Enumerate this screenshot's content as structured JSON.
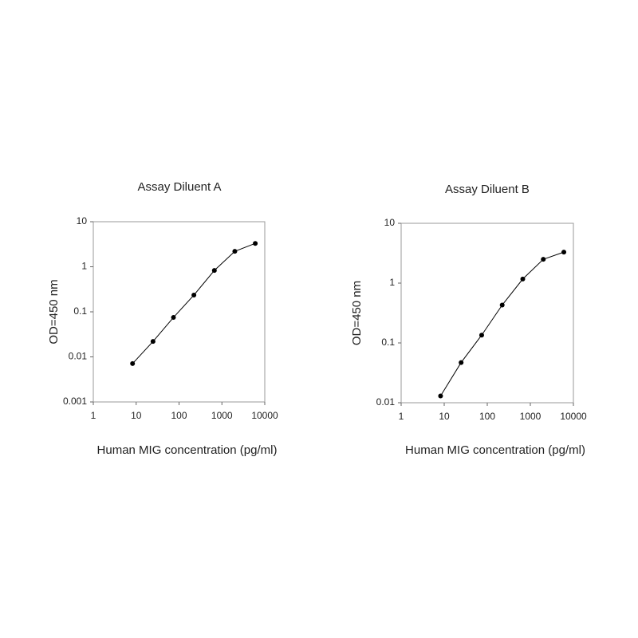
{
  "chart_data": [
    {
      "type": "line",
      "title": "Assay Diluent A",
      "xlabel": "Human MIG concentration (pg/ml)",
      "ylabel": "OD=450 nm",
      "xscale": "log",
      "yscale": "log",
      "x": [
        8.23,
        24.7,
        74.1,
        222,
        667,
        2000,
        6000
      ],
      "series": [
        {
          "color": "#000000",
          "values": [
            0.0071,
            0.022,
            0.075,
            0.235,
            0.83,
            2.2,
            3.3
          ]
        }
      ],
      "xlim": [
        1,
        10000
      ],
      "xticks": [
        1,
        10,
        100,
        1000,
        10000
      ],
      "ylim": [
        0.001,
        10
      ],
      "yticks": [
        0.001,
        0.01,
        0.1,
        1,
        10
      ]
    },
    {
      "type": "line",
      "title": "Assay Diluent B",
      "xlabel": "Human MIG concentration (pg/ml)",
      "ylabel": "OD=450 nm",
      "xscale": "log",
      "yscale": "log",
      "x": [
        8.23,
        24.7,
        74.1,
        222,
        667,
        2000,
        6000
      ],
      "series": [
        {
          "color": "#000000",
          "values": [
            0.013,
            0.047,
            0.135,
            0.43,
            1.17,
            2.5,
            3.3
          ]
        }
      ],
      "xlim": [
        1,
        10000
      ],
      "xticks": [
        1,
        10,
        100,
        1000,
        10000
      ],
      "ylim": [
        0.01,
        10
      ],
      "yticks": [
        0.01,
        0.1,
        1,
        10
      ]
    }
  ]
}
